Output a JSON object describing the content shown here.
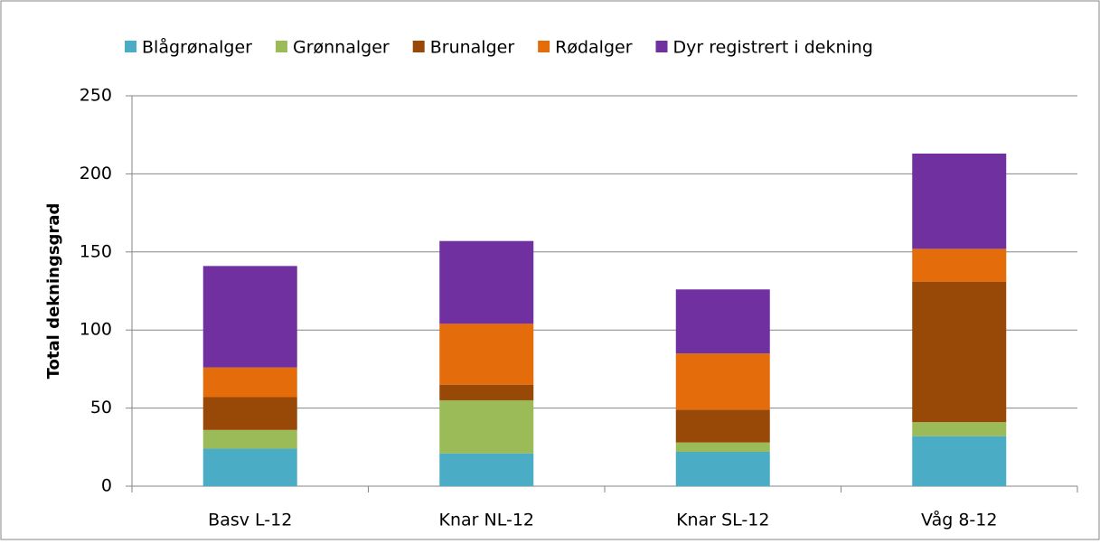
{
  "chart_data": {
    "type": "stacked_bar",
    "y_label": "Total dekningsgrad",
    "categories": [
      "Basv L-12",
      "Knar NL-12",
      "Knar SL-12",
      "Våg 8-12"
    ],
    "series": [
      {
        "name": "Blågrønalger",
        "color": "#4bacc6",
        "values": [
          24,
          21,
          22,
          32
        ]
      },
      {
        "name": "Grønnalger",
        "color": "#9bbb59",
        "values": [
          12,
          34,
          6,
          9
        ]
      },
      {
        "name": "Brunalger",
        "color": "#984807",
        "values": [
          21,
          10,
          21,
          90
        ]
      },
      {
        "name": "Rødalger",
        "color": "#e46c0a",
        "values": [
          19,
          39,
          36,
          21
        ]
      },
      {
        "name": "Dyr registrert i dekning",
        "color": "#7030a0",
        "values": [
          65,
          53,
          41,
          61
        ]
      }
    ],
    "ylim": [
      0,
      250
    ],
    "yticks": [
      0,
      50,
      100,
      150,
      200,
      250
    ],
    "grid": true,
    "legend": "top"
  }
}
